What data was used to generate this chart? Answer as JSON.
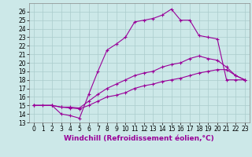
{
  "xlabel": "Windchill (Refroidissement éolien,°C)",
  "bg_color": "#cce8e8",
  "line_color": "#990099",
  "grid_color": "#aacccc",
  "xlim": [
    -0.5,
    23.5
  ],
  "ylim": [
    13,
    27
  ],
  "yticks": [
    13,
    14,
    15,
    16,
    17,
    18,
    19,
    20,
    21,
    22,
    23,
    24,
    25,
    26
  ],
  "xticks": [
    0,
    1,
    2,
    3,
    4,
    5,
    6,
    7,
    8,
    9,
    10,
    11,
    12,
    13,
    14,
    15,
    16,
    17,
    18,
    19,
    20,
    21,
    22,
    23
  ],
  "line1_x": [
    0,
    1,
    2,
    3,
    4,
    5,
    6,
    7,
    8,
    9,
    10,
    11,
    12,
    13,
    14,
    15,
    16,
    17,
    18,
    19,
    20,
    21,
    22,
    23
  ],
  "line1_y": [
    15,
    15,
    15,
    14,
    13.8,
    13.5,
    16.3,
    19,
    21.5,
    22.2,
    23,
    24.8,
    25,
    25.2,
    25.6,
    26.3,
    25,
    25,
    23.2,
    23,
    22.8,
    18,
    18,
    18
  ],
  "line2_x": [
    0,
    2,
    3,
    4,
    5,
    6,
    7,
    8,
    9,
    10,
    11,
    12,
    13,
    14,
    15,
    16,
    17,
    18,
    19,
    20,
    21,
    22,
    23
  ],
  "line2_y": [
    15,
    15,
    14.8,
    14.8,
    14.7,
    15.5,
    16.3,
    17,
    17.5,
    18,
    18.5,
    18.8,
    19,
    19.5,
    19.8,
    20,
    20.5,
    20.8,
    20.5,
    20.3,
    19.5,
    18.5,
    18
  ],
  "line3_x": [
    0,
    2,
    3,
    4,
    5,
    6,
    7,
    8,
    9,
    10,
    11,
    12,
    13,
    14,
    15,
    16,
    17,
    18,
    19,
    20,
    21,
    22,
    23
  ],
  "line3_y": [
    15,
    15,
    14.8,
    14.7,
    14.6,
    15,
    15.5,
    16,
    16.2,
    16.5,
    17,
    17.3,
    17.5,
    17.8,
    18,
    18.2,
    18.5,
    18.8,
    19,
    19.2,
    19.2,
    18.5,
    18
  ],
  "tick_fontsize": 5.5,
  "xlabel_fontsize": 6.5
}
